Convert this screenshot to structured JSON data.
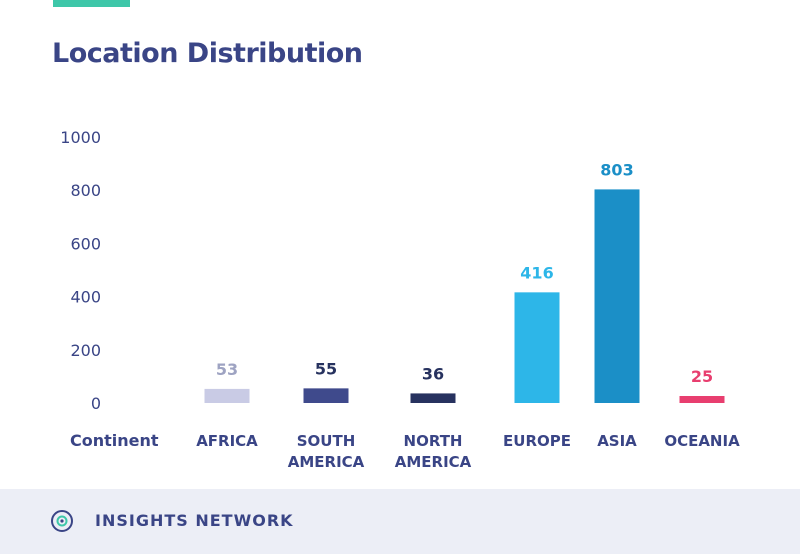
{
  "title": "Location Distribution",
  "footer": {
    "brand": "INSIGHTS NETWORK",
    "logo_icon": "insights-network-logo-icon"
  },
  "colors": {
    "accent": "#3ec7a9",
    "title": "#3a4586",
    "footer_bg": "#eceef6"
  },
  "chart_data": {
    "type": "bar",
    "title": "Location Distribution",
    "xlabel": "Continent",
    "ylabel": "",
    "ylim": [
      0,
      1000
    ],
    "yticks": [
      0,
      200,
      400,
      600,
      800,
      1000
    ],
    "grid": false,
    "categories": [
      [
        "AFRICA"
      ],
      [
        "SOUTH",
        "AMERICA"
      ],
      [
        "NORTH",
        "AMERICA"
      ],
      [
        "EUROPE"
      ],
      [
        "ASIA"
      ],
      [
        "OCEANIA"
      ]
    ],
    "values": [
      53,
      55,
      36,
      416,
      803,
      25
    ],
    "bar_colors": [
      "#c9cbe5",
      "#3f4a8c",
      "#27325f",
      "#2db6e8",
      "#1b8fc7",
      "#e83e6f"
    ],
    "label_colors": [
      "#9ea3c2",
      "#27325f",
      "#27325f",
      "#2db6e8",
      "#1b8fc7",
      "#e83e6f"
    ]
  }
}
